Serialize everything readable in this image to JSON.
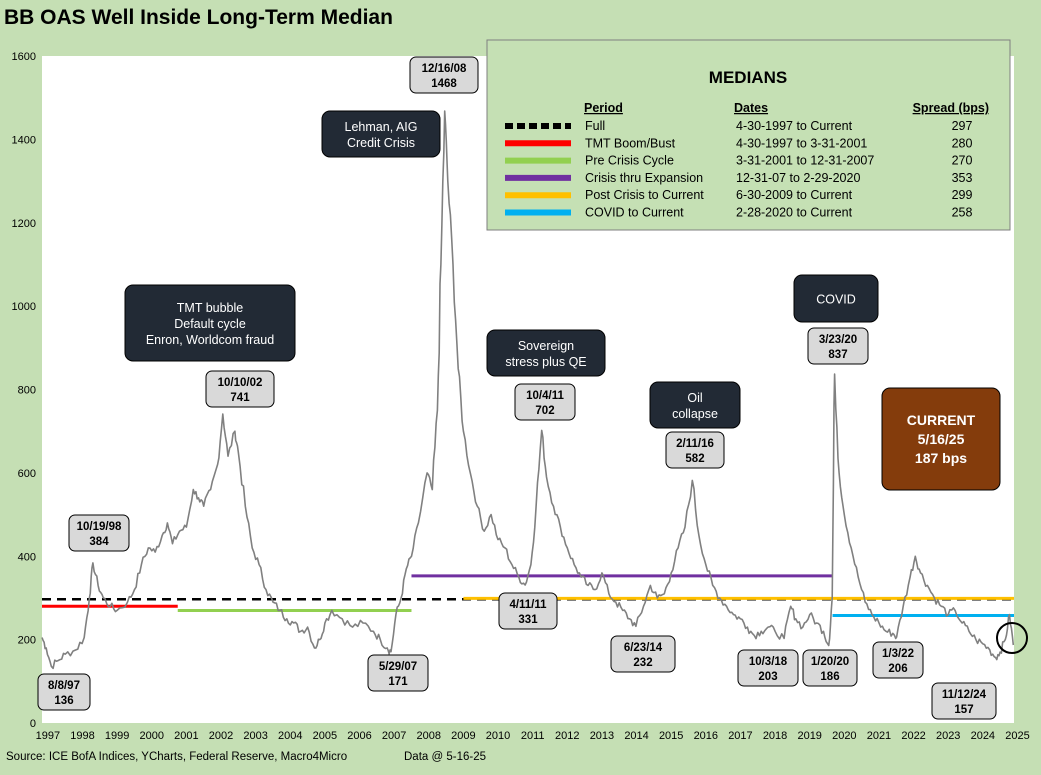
{
  "title": "BB OAS Well Inside Long-Term Median",
  "footer": {
    "source": "Source: ICE BofA Indices, YCharts, Federal Reserve, Macro4Micro",
    "data_as_of": "Data @ 5-16-25"
  },
  "colors": {
    "background": "#c5dfb4",
    "plot_area": "#ffffff",
    "series": "#808080",
    "callout_dark": "#222a35",
    "callout_current": "#843c0c",
    "label_box": "#d9d9d9"
  },
  "chart_data": {
    "type": "line",
    "title": "BB OAS Well Inside Long-Term Median",
    "xlabel": "",
    "ylabel": "",
    "xlim": [
      1997.33,
      2025.4
    ],
    "ylim": [
      0,
      1600
    ],
    "yticks": [
      0,
      200,
      400,
      600,
      800,
      1000,
      1200,
      1400,
      1600
    ],
    "xticks": [
      "1997",
      "1998",
      "1999",
      "2000",
      "2001",
      "2002",
      "2003",
      "2004",
      "2005",
      "2006",
      "2007",
      "2008",
      "2009",
      "2010",
      "2011",
      "2012",
      "2013",
      "2014",
      "2015",
      "2016",
      "2017",
      "2018",
      "2019",
      "2020",
      "2021",
      "2022",
      "2023",
      "2024",
      "2025"
    ],
    "grid": false,
    "series": [
      {
        "color": "#808080",
        "points": [
          [
            1997.33,
            205
          ],
          [
            1997.45,
            180
          ],
          [
            1997.6,
            136
          ],
          [
            1997.8,
            150
          ],
          [
            1998.0,
            165
          ],
          [
            1998.3,
            175
          ],
          [
            1998.55,
            205
          ],
          [
            1998.7,
            300
          ],
          [
            1998.8,
            384
          ],
          [
            1998.95,
            330
          ],
          [
            1999.1,
            300
          ],
          [
            1999.3,
            280
          ],
          [
            1999.5,
            270
          ],
          [
            1999.8,
            290
          ],
          [
            2000.0,
            320
          ],
          [
            2000.2,
            380
          ],
          [
            2000.4,
            420
          ],
          [
            2000.6,
            410
          ],
          [
            2000.8,
            450
          ],
          [
            2000.95,
            480
          ],
          [
            2001.1,
            430
          ],
          [
            2001.3,
            460
          ],
          [
            2001.5,
            470
          ],
          [
            2001.7,
            560
          ],
          [
            2001.85,
            540
          ],
          [
            2002.0,
            520
          ],
          [
            2002.2,
            560
          ],
          [
            2002.4,
            620
          ],
          [
            2002.55,
            741
          ],
          [
            2002.7,
            640
          ],
          [
            2002.9,
            700
          ],
          [
            2003.0,
            650
          ],
          [
            2003.2,
            520
          ],
          [
            2003.4,
            420
          ],
          [
            2003.6,
            380
          ],
          [
            2003.8,
            320
          ],
          [
            2004.0,
            290
          ],
          [
            2004.2,
            270
          ],
          [
            2004.4,
            250
          ],
          [
            2004.6,
            240
          ],
          [
            2004.8,
            220
          ],
          [
            2005.0,
            230
          ],
          [
            2005.2,
            180
          ],
          [
            2005.35,
            200
          ],
          [
            2005.5,
            240
          ],
          [
            2005.7,
            270
          ],
          [
            2006.0,
            250
          ],
          [
            2006.3,
            230
          ],
          [
            2006.6,
            240
          ],
          [
            2006.9,
            220
          ],
          [
            2007.1,
            200
          ],
          [
            2007.3,
            180
          ],
          [
            2007.41,
            171
          ],
          [
            2007.55,
            260
          ],
          [
            2007.7,
            300
          ],
          [
            2007.85,
            370
          ],
          [
            2008.0,
            400
          ],
          [
            2008.2,
            480
          ],
          [
            2008.45,
            600
          ],
          [
            2008.6,
            560
          ],
          [
            2008.75,
            750
          ],
          [
            2008.85,
            1100
          ],
          [
            2008.96,
            1468
          ],
          [
            2009.05,
            1300
          ],
          [
            2009.2,
            1100
          ],
          [
            2009.35,
            850
          ],
          [
            2009.5,
            700
          ],
          [
            2009.7,
            600
          ],
          [
            2009.9,
            520
          ],
          [
            2010.1,
            460
          ],
          [
            2010.3,
            500
          ],
          [
            2010.5,
            440
          ],
          [
            2010.7,
            420
          ],
          [
            2010.9,
            380
          ],
          [
            2011.1,
            350
          ],
          [
            2011.28,
            331
          ],
          [
            2011.45,
            380
          ],
          [
            2011.6,
            520
          ],
          [
            2011.76,
            702
          ],
          [
            2011.9,
            590
          ],
          [
            2012.1,
            520
          ],
          [
            2012.3,
            470
          ],
          [
            2012.5,
            420
          ],
          [
            2012.7,
            380
          ],
          [
            2012.9,
            350
          ],
          [
            2013.1,
            330
          ],
          [
            2013.3,
            320
          ],
          [
            2013.5,
            360
          ],
          [
            2013.7,
            310
          ],
          [
            2013.9,
            290
          ],
          [
            2014.1,
            270
          ],
          [
            2014.3,
            250
          ],
          [
            2014.48,
            232
          ],
          [
            2014.7,
            280
          ],
          [
            2014.9,
            330
          ],
          [
            2015.1,
            300
          ],
          [
            2015.3,
            310
          ],
          [
            2015.5,
            360
          ],
          [
            2015.7,
            420
          ],
          [
            2015.9,
            470
          ],
          [
            2016.11,
            582
          ],
          [
            2016.3,
            450
          ],
          [
            2016.5,
            380
          ],
          [
            2016.7,
            330
          ],
          [
            2016.9,
            300
          ],
          [
            2017.1,
            280
          ],
          [
            2017.3,
            260
          ],
          [
            2017.5,
            250
          ],
          [
            2017.7,
            230
          ],
          [
            2017.9,
            210
          ],
          [
            2018.1,
            220
          ],
          [
            2018.3,
            230
          ],
          [
            2018.5,
            220
          ],
          [
            2018.76,
            203
          ],
          [
            2018.95,
            280
          ],
          [
            2019.1,
            250
          ],
          [
            2019.3,
            230
          ],
          [
            2019.5,
            260
          ],
          [
            2019.7,
            240
          ],
          [
            2019.9,
            220
          ],
          [
            2020.05,
            186
          ],
          [
            2020.15,
            300
          ],
          [
            2020.22,
            837
          ],
          [
            2020.35,
            600
          ],
          [
            2020.5,
            500
          ],
          [
            2020.7,
            420
          ],
          [
            2020.9,
            350
          ],
          [
            2021.1,
            290
          ],
          [
            2021.3,
            260
          ],
          [
            2021.5,
            240
          ],
          [
            2021.7,
            220
          ],
          [
            2021.9,
            215
          ],
          [
            2022.01,
            206
          ],
          [
            2022.2,
            280
          ],
          [
            2022.4,
            350
          ],
          [
            2022.55,
            400
          ],
          [
            2022.7,
            360
          ],
          [
            2022.9,
            330
          ],
          [
            2023.1,
            300
          ],
          [
            2023.3,
            280
          ],
          [
            2023.5,
            260
          ],
          [
            2023.7,
            270
          ],
          [
            2023.9,
            240
          ],
          [
            2024.1,
            220
          ],
          [
            2024.3,
            200
          ],
          [
            2024.5,
            190
          ],
          [
            2024.7,
            175
          ],
          [
            2024.87,
            157
          ],
          [
            2025.0,
            170
          ],
          [
            2025.15,
            200
          ],
          [
            2025.27,
            260
          ],
          [
            2025.38,
            187
          ]
        ]
      }
    ],
    "median_lines": [
      {
        "name": "Full",
        "value": 297,
        "start": 1997.33,
        "end": 2025.4,
        "color": "#000000",
        "dashed": true
      },
      {
        "name": "TMT Boom/Bust",
        "value": 280,
        "start": 1997.33,
        "end": 2001.25,
        "color": "#ff0000",
        "dashed": false
      },
      {
        "name": "Pre Crisis Cycle",
        "value": 270,
        "start": 2001.25,
        "end": 2008.0,
        "color": "#92d050",
        "dashed": false
      },
      {
        "name": "Crisis thru Expansion",
        "value": 353,
        "start": 2008.0,
        "end": 2020.16,
        "color": "#7030a0",
        "dashed": false
      },
      {
        "name": "Post Crisis to Current",
        "value": 299,
        "start": 2009.5,
        "end": 2025.4,
        "color": "#ffc000",
        "dashed": false
      },
      {
        "name": "COVID to Current",
        "value": 258,
        "start": 2020.16,
        "end": 2025.4,
        "color": "#00b0f0",
        "dashed": false
      }
    ],
    "annotations": [
      {
        "date": "8/8/97",
        "value": "136",
        "x": 1997.6,
        "y": 136
      },
      {
        "date": "10/19/98",
        "value": "384",
        "x": 1998.8,
        "y": 384
      },
      {
        "date": "10/10/02",
        "value": "741",
        "x": 2002.77,
        "y": 741
      },
      {
        "date": "5/29/07",
        "value": "171",
        "x": 2007.41,
        "y": 171
      },
      {
        "date": "12/16/08",
        "value": "1468",
        "x": 2008.96,
        "y": 1468
      },
      {
        "date": "4/11/11",
        "value": "331",
        "x": 2011.28,
        "y": 331
      },
      {
        "date": "10/4/11",
        "value": "702",
        "x": 2011.76,
        "y": 702
      },
      {
        "date": "6/23/14",
        "value": "232",
        "x": 2014.48,
        "y": 232
      },
      {
        "date": "2/11/16",
        "value": "582",
        "x": 2016.11,
        "y": 582
      },
      {
        "date": "10/3/18",
        "value": "203",
        "x": 2018.76,
        "y": 203
      },
      {
        "date": "1/20/20",
        "value": "186",
        "x": 2020.05,
        "y": 186
      },
      {
        "date": "3/23/20",
        "value": "837",
        "x": 2020.22,
        "y": 837
      },
      {
        "date": "1/3/22",
        "value": "206",
        "x": 2022.01,
        "y": 206
      },
      {
        "date": "11/12/24",
        "value": "157",
        "x": 2024.87,
        "y": 157
      }
    ],
    "callouts": [
      {
        "lines": [
          "TMT bubble",
          "Default cycle",
          "Enron, Worldcom fraud"
        ]
      },
      {
        "lines": [
          "Lehman, AIG",
          "Credit Crisis"
        ]
      },
      {
        "lines": [
          "Sovereign",
          "stress plus QE"
        ]
      },
      {
        "lines": [
          "Oil",
          "collapse"
        ]
      },
      {
        "lines": [
          "COVID"
        ]
      },
      {
        "lines": [
          "CURRENT",
          "5/16/25",
          "187 bps"
        ]
      }
    ],
    "medians_table": {
      "title": "MEDIANS",
      "headers": [
        "Period",
        "Dates",
        "Spread (bps)"
      ],
      "rows": [
        {
          "period": "Full",
          "dates": "4-30-1997 to Current",
          "spread": "297"
        },
        {
          "period": "TMT Boom/Bust",
          "dates": "4-30-1997 to 3-31-2001",
          "spread": "280"
        },
        {
          "period": "Pre Crisis Cycle",
          "dates": "3-31-2001 to 12-31-2007",
          "spread": "270"
        },
        {
          "period": "Crisis thru Expansion",
          "dates": "12-31-07 to 2-29-2020",
          "spread": "353"
        },
        {
          "period": "Post Crisis to Current",
          "dates": "6-30-2009  to Current",
          "spread": "299"
        },
        {
          "period": "COVID to Current",
          "dates": "2-28-2020  to Current",
          "spread": "258"
        }
      ]
    }
  }
}
